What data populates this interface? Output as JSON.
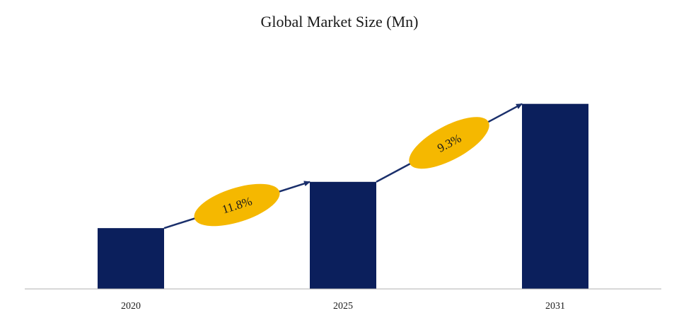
{
  "chart_data": {
    "type": "bar",
    "title": "Global Market Size (Mn)",
    "categories": [
      "2020",
      "2025",
      "2031"
    ],
    "values": [
      92,
      162,
      280
    ],
    "ylim": [
      0,
      300
    ],
    "grid": false,
    "legend": "none",
    "colors": {
      "bar": "#0b1f5c",
      "arrow": "#1a2f6b",
      "badge": "#f5b800",
      "axis": "#b0b0b0"
    },
    "annotations": [
      {
        "label": "11.8%",
        "from": "2020",
        "to": "2025"
      },
      {
        "label": "9.3%",
        "from": "2025",
        "to": "2031"
      }
    ]
  }
}
